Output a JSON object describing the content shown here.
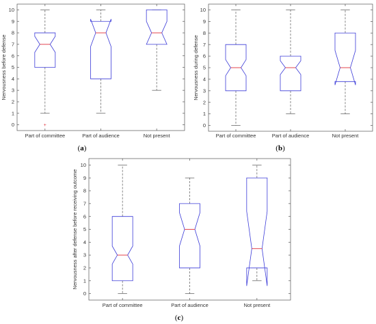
{
  "chart_data": [
    {
      "type": "boxplot",
      "panel_label": "a",
      "ylabel": "Nervousness before defense",
      "ylim": [
        -0.5,
        10.5
      ],
      "yticks": [
        0,
        1,
        2,
        3,
        4,
        5,
        6,
        7,
        8,
        9,
        10
      ],
      "categories": [
        "Part of committee",
        "Part of audience",
        "Not present"
      ],
      "boxes": [
        {
          "whisker_low": 1,
          "q1": 5,
          "median": 7,
          "q3": 8,
          "whisker_high": 10,
          "notch_low": 6.3,
          "notch_high": 7.7,
          "outliers": [
            0
          ]
        },
        {
          "whisker_low": 1,
          "q1": 4,
          "median": 8,
          "q3": 9,
          "whisker_high": 10,
          "notch_low": 6.8,
          "notch_high": 9.2,
          "outliers": []
        },
        {
          "whisker_low": 3,
          "q1": 7,
          "median": 8,
          "q3": 10,
          "whisker_high": 10,
          "notch_low": 7.0,
          "notch_high": 9.0,
          "outliers": []
        }
      ]
    },
    {
      "type": "boxplot",
      "panel_label": "b",
      "ylabel": "Nervousness during defense",
      "ylim": [
        -0.5,
        10.5
      ],
      "yticks": [
        0,
        1,
        2,
        3,
        4,
        5,
        6,
        7,
        8,
        9,
        10
      ],
      "categories": [
        "Part of committee",
        "Part of audience",
        "Not present"
      ],
      "boxes": [
        {
          "whisker_low": 0,
          "q1": 3,
          "median": 5,
          "q3": 7,
          "whisker_high": 10,
          "notch_low": 4.3,
          "notch_high": 5.7,
          "outliers": []
        },
        {
          "whisker_low": 1,
          "q1": 3,
          "median": 5,
          "q3": 6,
          "whisker_high": 10,
          "notch_low": 4.4,
          "notch_high": 5.6,
          "outliers": []
        },
        {
          "whisker_low": 1,
          "q1": 3.8,
          "median": 5,
          "q3": 8,
          "whisker_high": 10,
          "notch_low": 3.5,
          "notch_high": 6.5,
          "outliers": []
        }
      ]
    },
    {
      "type": "boxplot",
      "panel_label": "c",
      "ylabel": "Nervousness after defense before receiving outcome",
      "ylim": [
        -0.5,
        10.5
      ],
      "yticks": [
        0,
        1,
        2,
        3,
        4,
        5,
        6,
        7,
        8,
        9,
        10
      ],
      "categories": [
        "Part of committee",
        "Part of audience",
        "Not present"
      ],
      "boxes": [
        {
          "whisker_low": 0,
          "q1": 1,
          "median": 3,
          "q3": 6,
          "whisker_high": 10,
          "notch_low": 2.3,
          "notch_high": 3.7,
          "outliers": []
        },
        {
          "whisker_low": 0,
          "q1": 2,
          "median": 5,
          "q3": 7,
          "whisker_high": 9,
          "notch_low": 3.7,
          "notch_high": 6.3,
          "outliers": []
        },
        {
          "whisker_low": 1,
          "q1": 2,
          "median": 3.5,
          "q3": 9,
          "whisker_high": 10,
          "notch_low": 0.6,
          "notch_high": 6.4,
          "outliers": []
        }
      ]
    }
  ],
  "colors": {
    "box": "#3a3ad8",
    "median": "#e0303a",
    "whisker": "#555555",
    "outlier": "#e0303a",
    "axis": "#555555"
  }
}
